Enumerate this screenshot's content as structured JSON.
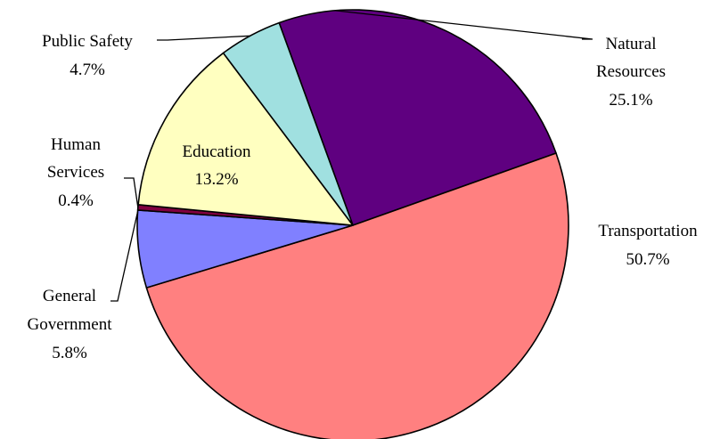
{
  "chart_data": {
    "type": "pie",
    "title": "",
    "start_angle_deg": -20,
    "direction": "clockwise",
    "slices": [
      {
        "name": "Natural Resources",
        "line1": "Natural",
        "line2": "Resources",
        "pct_label": "25.1%",
        "value": 25.1,
        "color": "#5f0080"
      },
      {
        "name": "Transportation",
        "line1": "Transportation",
        "line2": "",
        "pct_label": "50.7%",
        "value": 50.7,
        "color": "#ff8080"
      },
      {
        "name": "General Government",
        "line1": "General",
        "line2": "Government",
        "pct_label": "5.8%",
        "value": 5.8,
        "color": "#8080ff"
      },
      {
        "name": "Human Services",
        "line1": "Human",
        "line2": "Services",
        "pct_label": "0.4%",
        "value": 0.4,
        "color": "#800040"
      },
      {
        "name": "Education",
        "line1": "Education",
        "line2": "",
        "pct_label": "13.2%",
        "value": 13.2,
        "color": "#ffffc0"
      },
      {
        "name": "Public Safety",
        "line1": "Public Safety",
        "line2": "",
        "pct_label": "4.7%",
        "value": 4.7,
        "color": "#a0e0e0"
      }
    ]
  }
}
